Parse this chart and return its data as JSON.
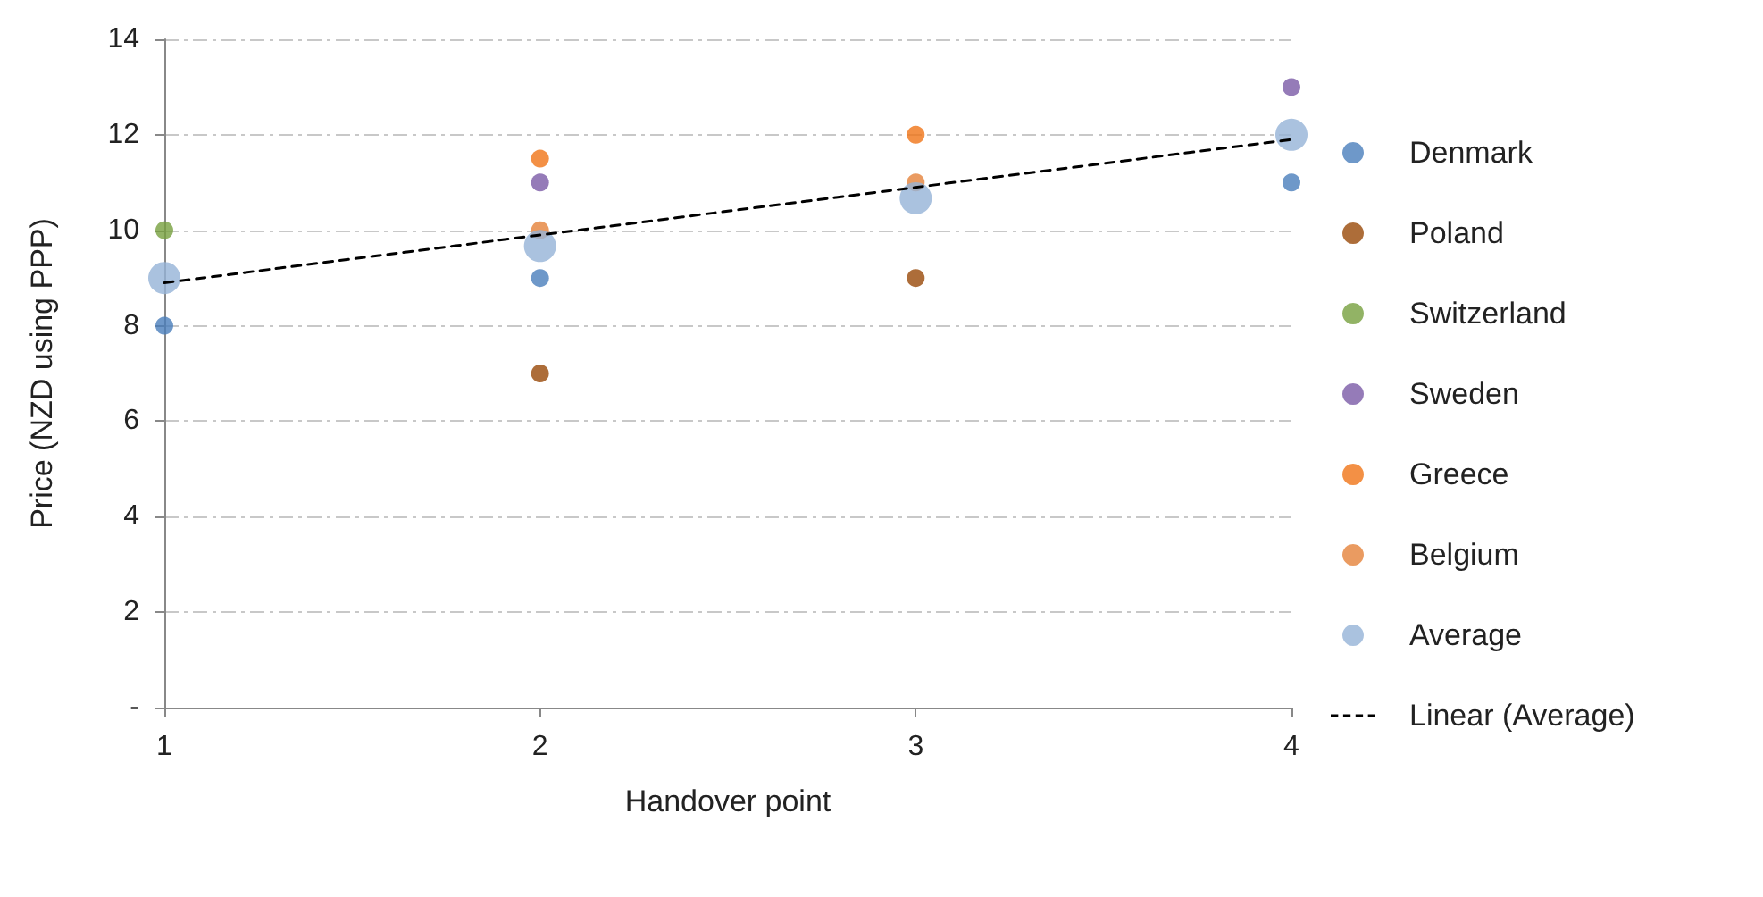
{
  "chart_data": {
    "type": "scatter",
    "xlabel": "Handover point",
    "ylabel": "Price (NZD using PPP)",
    "xlim": [
      1,
      4
    ],
    "xticks": [
      1,
      2,
      3,
      4
    ],
    "ylim": [
      0,
      14
    ],
    "yticks": [
      {
        "value": 0,
        "label": "-"
      },
      2,
      4,
      6,
      8,
      10,
      12,
      14
    ],
    "grid": "y",
    "legend": "right",
    "marker": "circle",
    "series": [
      {
        "name": "Denmark",
        "color": "#4a7ebb",
        "x": [
          1,
          2,
          4
        ],
        "values": [
          8,
          9,
          11
        ]
      },
      {
        "name": "Poland",
        "color": "#984807",
        "x": [
          2,
          3
        ],
        "values": [
          7,
          9
        ]
      },
      {
        "name": "Switzerland",
        "color": "#77a03f",
        "x": [
          1
        ],
        "values": [
          10
        ]
      },
      {
        "name": "Sweden",
        "color": "#7b5aa6",
        "x": [
          2,
          4
        ],
        "values": [
          11,
          13
        ]
      },
      {
        "name": "Greece",
        "color": "#f07417",
        "x": [
          2,
          3
        ],
        "values": [
          11.5,
          12
        ]
      },
      {
        "name": "Belgium",
        "color": "#e5823a",
        "x": [
          2,
          3
        ],
        "values": [
          10,
          11
        ]
      },
      {
        "name": "Average",
        "color": "#95b3d7",
        "x": [
          1,
          2,
          3,
          4
        ],
        "values": [
          9,
          9.67,
          10.67,
          12
        ]
      },
      {
        "name": "Linear (Average)",
        "type": "line",
        "color": "#000000",
        "line_style": "dashed",
        "marker": "none",
        "x": [
          1,
          4
        ],
        "values": [
          8.9,
          11.9
        ]
      }
    ]
  }
}
